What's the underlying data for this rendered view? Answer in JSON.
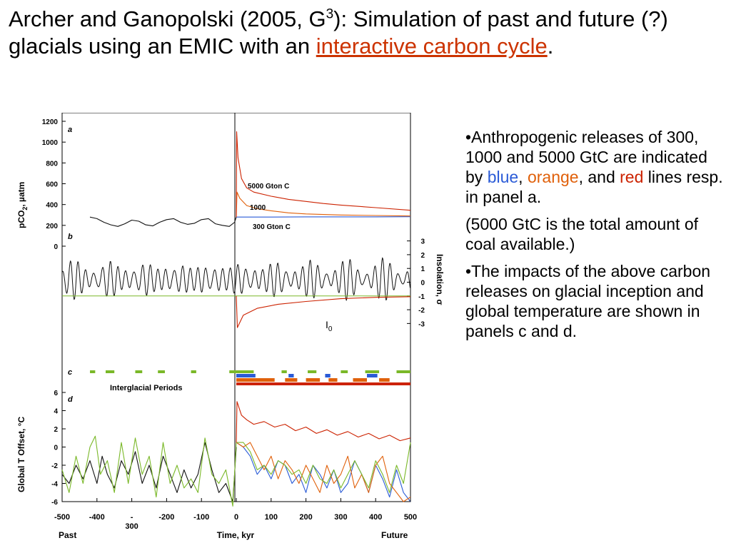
{
  "title": {
    "part1": "Archer and Ganopolski (2005, G",
    "sup": "3",
    "part2": "): Simulation of past and future (?) glacials using an EMIC with an ",
    "highlight": "interactive carbon cycle",
    "end": "."
  },
  "notes": {
    "bullet1": {
      "pre": "•Anthropogenic releases of 300, 1000 and 5000 GtC are indicated by ",
      "blue": "blue",
      "comma": ",",
      "orange": "orange",
      "mid": ", and ",
      "red": "red",
      "post": " lines resp. in panel a."
    },
    "paren": "(5000 GtC is the total amount of coal available.)",
    "bullet2": "•The impacts of the above carbon releases on glacial inception and global temperature are shown in panels c and d."
  },
  "colors": {
    "blue": "#2a5bd7",
    "orange": "#e0600a",
    "red": "#cc2200",
    "green": "#7ab828",
    "black": "#111111"
  },
  "chart_data": {
    "type": "line",
    "x": {
      "label": "Time, kyr",
      "range": [
        -500,
        500
      ],
      "ticks": [
        "-500",
        "-400",
        "-300",
        "-200",
        "-100",
        "0",
        "100",
        "200",
        "300",
        "400",
        "500"
      ],
      "extra_tick_label": "300",
      "left_label": "Past",
      "right_label": "Future"
    },
    "panels": [
      {
        "letter": "a",
        "ylabel": "pCO",
        "ylabel_sub": "2",
        "ylabel_unit": ", µatm",
        "ylim": [
          0,
          1200
        ],
        "yticks": [
          "1200",
          "1000",
          "800",
          "600",
          "400",
          "200",
          "0"
        ],
        "annotations": [
          "5000 Gton C",
          "1000",
          "300 Gton C"
        ],
        "series": [
          {
            "name": "",
            "color": "black",
            "x": [
              -420,
              -400,
              -380,
              -360,
              -340,
              -320,
              -300,
              -280,
              -260,
              -240,
              -220,
              -200,
              -180,
              -160,
              -140,
              -120,
              -100,
              -80,
              -60,
              -40,
              -20,
              -5,
              0
            ],
            "values": [
              280,
              265,
              230,
              205,
              190,
              215,
              250,
              240,
              205,
              195,
              230,
              255,
              265,
              230,
              210,
              220,
              255,
              265,
              215,
              200,
              190,
              230,
              280
            ]
          },
          {
            "name": "",
            "color": "blue",
            "x": [
              0,
              100,
              200,
              300,
              400,
              500
            ],
            "values": [
              280,
              280,
              282,
              282,
              282,
              283
            ]
          },
          {
            "name": "",
            "color": "orange",
            "x": [
              0,
              2,
              10,
              30,
              60,
              100,
              150,
              200,
              300,
              400,
              500
            ],
            "values": [
              280,
              520,
              460,
              390,
              360,
              340,
              320,
              310,
              300,
              295,
              290
            ]
          },
          {
            "name": "",
            "color": "red",
            "x": [
              0,
              1,
              5,
              15,
              30,
              50,
              100,
              150,
              200,
              250,
              300,
              400,
              500
            ],
            "values": [
              280,
              1100,
              850,
              650,
              560,
              520,
              480,
              450,
              430,
              410,
              395,
              370,
              345
            ]
          }
        ]
      },
      {
        "letter": "b",
        "ylabel": "Insolation, σ",
        "ylim": [
          -3.5,
          3.5
        ],
        "yticks": [
          "3",
          "2",
          "1",
          "0",
          "-1",
          "-2",
          "-3"
        ],
        "annotation": "I",
        "annotation_sub": "0",
        "series": [
          {
            "name": "",
            "color": "black",
            "type": "oscillation",
            "mean": 0.2,
            "amplitude": 1.6
          },
          {
            "name": "",
            "color": "green",
            "x": [
              -500,
              500
            ],
            "values": [
              -1,
              -1
            ]
          },
          {
            "name": "",
            "color": "red",
            "x": [
              0,
              3,
              20,
              60,
              120,
              200,
              300,
              400,
              500
            ],
            "values": [
              -1,
              -3.3,
              -2.4,
              -1.9,
              -1.6,
              -1.4,
              -1.2,
              -1.1,
              -1.05
            ]
          }
        ]
      },
      {
        "letter": "c",
        "label": "Interglacial Periods",
        "bars": [
          {
            "color": "green",
            "row": 0,
            "from": -420,
            "to": -405
          },
          {
            "color": "green",
            "row": 0,
            "from": -375,
            "to": -350
          },
          {
            "color": "green",
            "row": 0,
            "from": -290,
            "to": -270
          },
          {
            "color": "green",
            "row": 0,
            "from": -225,
            "to": -205
          },
          {
            "color": "green",
            "row": 0,
            "from": -130,
            "to": -115
          },
          {
            "color": "green",
            "row": 0,
            "from": -20,
            "to": 50
          },
          {
            "color": "green",
            "row": 0,
            "from": 130,
            "to": 145
          },
          {
            "color": "green",
            "row": 0,
            "from": 205,
            "to": 230
          },
          {
            "color": "green",
            "row": 0,
            "from": 300,
            "to": 320
          },
          {
            "color": "green",
            "row": 0,
            "from": 370,
            "to": 410
          },
          {
            "color": "green",
            "row": 0,
            "from": 460,
            "to": 500
          },
          {
            "color": "blue",
            "row": 1,
            "from": 0,
            "to": 55
          },
          {
            "color": "blue",
            "row": 1,
            "from": 150,
            "to": 165
          },
          {
            "color": "blue",
            "row": 1,
            "from": 255,
            "to": 270
          },
          {
            "color": "blue",
            "row": 1,
            "from": 375,
            "to": 405
          },
          {
            "color": "orange",
            "row": 2,
            "from": 0,
            "to": 110
          },
          {
            "color": "orange",
            "row": 2,
            "from": 140,
            "to": 175
          },
          {
            "color": "orange",
            "row": 2,
            "from": 200,
            "to": 240
          },
          {
            "color": "orange",
            "row": 2,
            "from": 265,
            "to": 290
          },
          {
            "color": "orange",
            "row": 2,
            "from": 335,
            "to": 375
          },
          {
            "color": "orange",
            "row": 2,
            "from": 410,
            "to": 440
          },
          {
            "color": "red",
            "row": 3,
            "from": 0,
            "to": 500
          }
        ]
      },
      {
        "letter": "d",
        "ylabel": "Global T Offset, °C",
        "ylim": [
          -6,
          6
        ],
        "yticks": [
          "6",
          "4",
          "2",
          "0",
          "-2",
          "-4",
          "-6"
        ],
        "series": [
          {
            "name": "",
            "color": "black",
            "x": [
              -500,
              -480,
              -460,
              -440,
              -420,
              -400,
              -385,
              -370,
              -350,
              -330,
              -310,
              -290,
              -270,
              -250,
              -230,
              -210,
              -190,
              -170,
              -150,
              -130,
              -110,
              -90,
              -70,
              -50,
              -30,
              -10,
              0
            ],
            "values": [
              -3,
              -4,
              -2,
              -3.5,
              -1.5,
              -4,
              -1,
              -3,
              -4.5,
              -1.5,
              -3,
              -0.5,
              -4,
              -2,
              -4.5,
              -1,
              -3,
              -5,
              -2.5,
              -4.5,
              -3,
              0.5,
              -2.5,
              -5,
              -4,
              -6,
              0
            ]
          },
          {
            "name": "",
            "color": "green",
            "x": [
              -500,
              -480,
              -460,
              -440,
              -420,
              -405,
              -390,
              -370,
              -350,
              -330,
              -310,
              -290,
              -270,
              -250,
              -230,
              -210,
              -190,
              -170,
              -150,
              -130,
              -110,
              -90,
              -70,
              -50,
              -30,
              -10,
              0
            ],
            "values": [
              -2.5,
              -5,
              -1,
              -4,
              0,
              1.2,
              -3,
              -1.5,
              -5,
              0.5,
              -4,
              1,
              -3,
              -1,
              -5.5,
              0.5,
              -4,
              -2,
              -4.5,
              -3.5,
              -5,
              1,
              -3,
              -4,
              -2.5,
              -6.5,
              0.5
            ]
          },
          {
            "name": "",
            "color": "blue",
            "x": [
              0,
              20,
              40,
              60,
              80,
              100,
              120,
              140,
              160,
              180,
              200,
              220,
              240,
              260,
              280,
              300,
              320,
              340,
              360,
              380,
              400,
              420,
              440,
              460,
              480,
              500
            ],
            "values": [
              0.5,
              0,
              -1,
              -3,
              -2,
              -3.5,
              -1.5,
              -2,
              -4,
              -3,
              -5,
              -2,
              -3,
              -4.5,
              -2.5,
              -5,
              -4,
              -1.5,
              -3,
              -5,
              -2,
              -3.5,
              -5.5,
              -2.5,
              -5,
              -6
            ]
          },
          {
            "name": "",
            "color": "orange",
            "x": [
              0,
              20,
              40,
              60,
              80,
              100,
              120,
              140,
              160,
              180,
              200,
              220,
              240,
              260,
              280,
              300,
              320,
              340,
              360,
              380,
              400,
              420,
              440,
              460,
              480,
              500
            ],
            "values": [
              0.5,
              0,
              0.5,
              -1,
              -2.5,
              -1,
              -3.5,
              -1.5,
              -2.5,
              -4,
              -2,
              -3.5,
              -5,
              -2,
              -4,
              -3,
              -1,
              -4.5,
              -3,
              -5,
              -2,
              -1,
              -4,
              -5,
              -6,
              -5.5
            ]
          },
          {
            "name": "",
            "color": "green",
            "x": [
              0,
              20,
              40,
              60,
              80,
              100,
              120,
              140,
              160,
              180,
              200,
              220,
              240,
              260,
              280,
              300,
              320,
              340,
              360,
              380,
              400,
              420,
              440,
              460,
              480,
              500
            ],
            "values": [
              0.5,
              0.5,
              -0.5,
              -2.5,
              -2,
              -3,
              -1.5,
              -2,
              -3,
              -2.5,
              -4,
              -2,
              -3.5,
              -4,
              -2.5,
              -4.5,
              -3,
              -1.5,
              -3,
              -4.5,
              -1.5,
              -3,
              -5,
              -2,
              -4,
              0.5
            ]
          },
          {
            "name": "",
            "color": "red",
            "x": [
              0,
              2,
              15,
              30,
              50,
              80,
              110,
              140,
              170,
              200,
              230,
              260,
              290,
              320,
              350,
              380,
              410,
              440,
              470,
              500
            ],
            "values": [
              0.5,
              5,
              3.5,
              3,
              2.5,
              2.8,
              2.2,
              2.5,
              1.8,
              2.2,
              1.5,
              1.9,
              1.3,
              1.7,
              1.1,
              1.5,
              0.9,
              1.3,
              0.7,
              1
            ]
          }
        ]
      }
    ]
  }
}
